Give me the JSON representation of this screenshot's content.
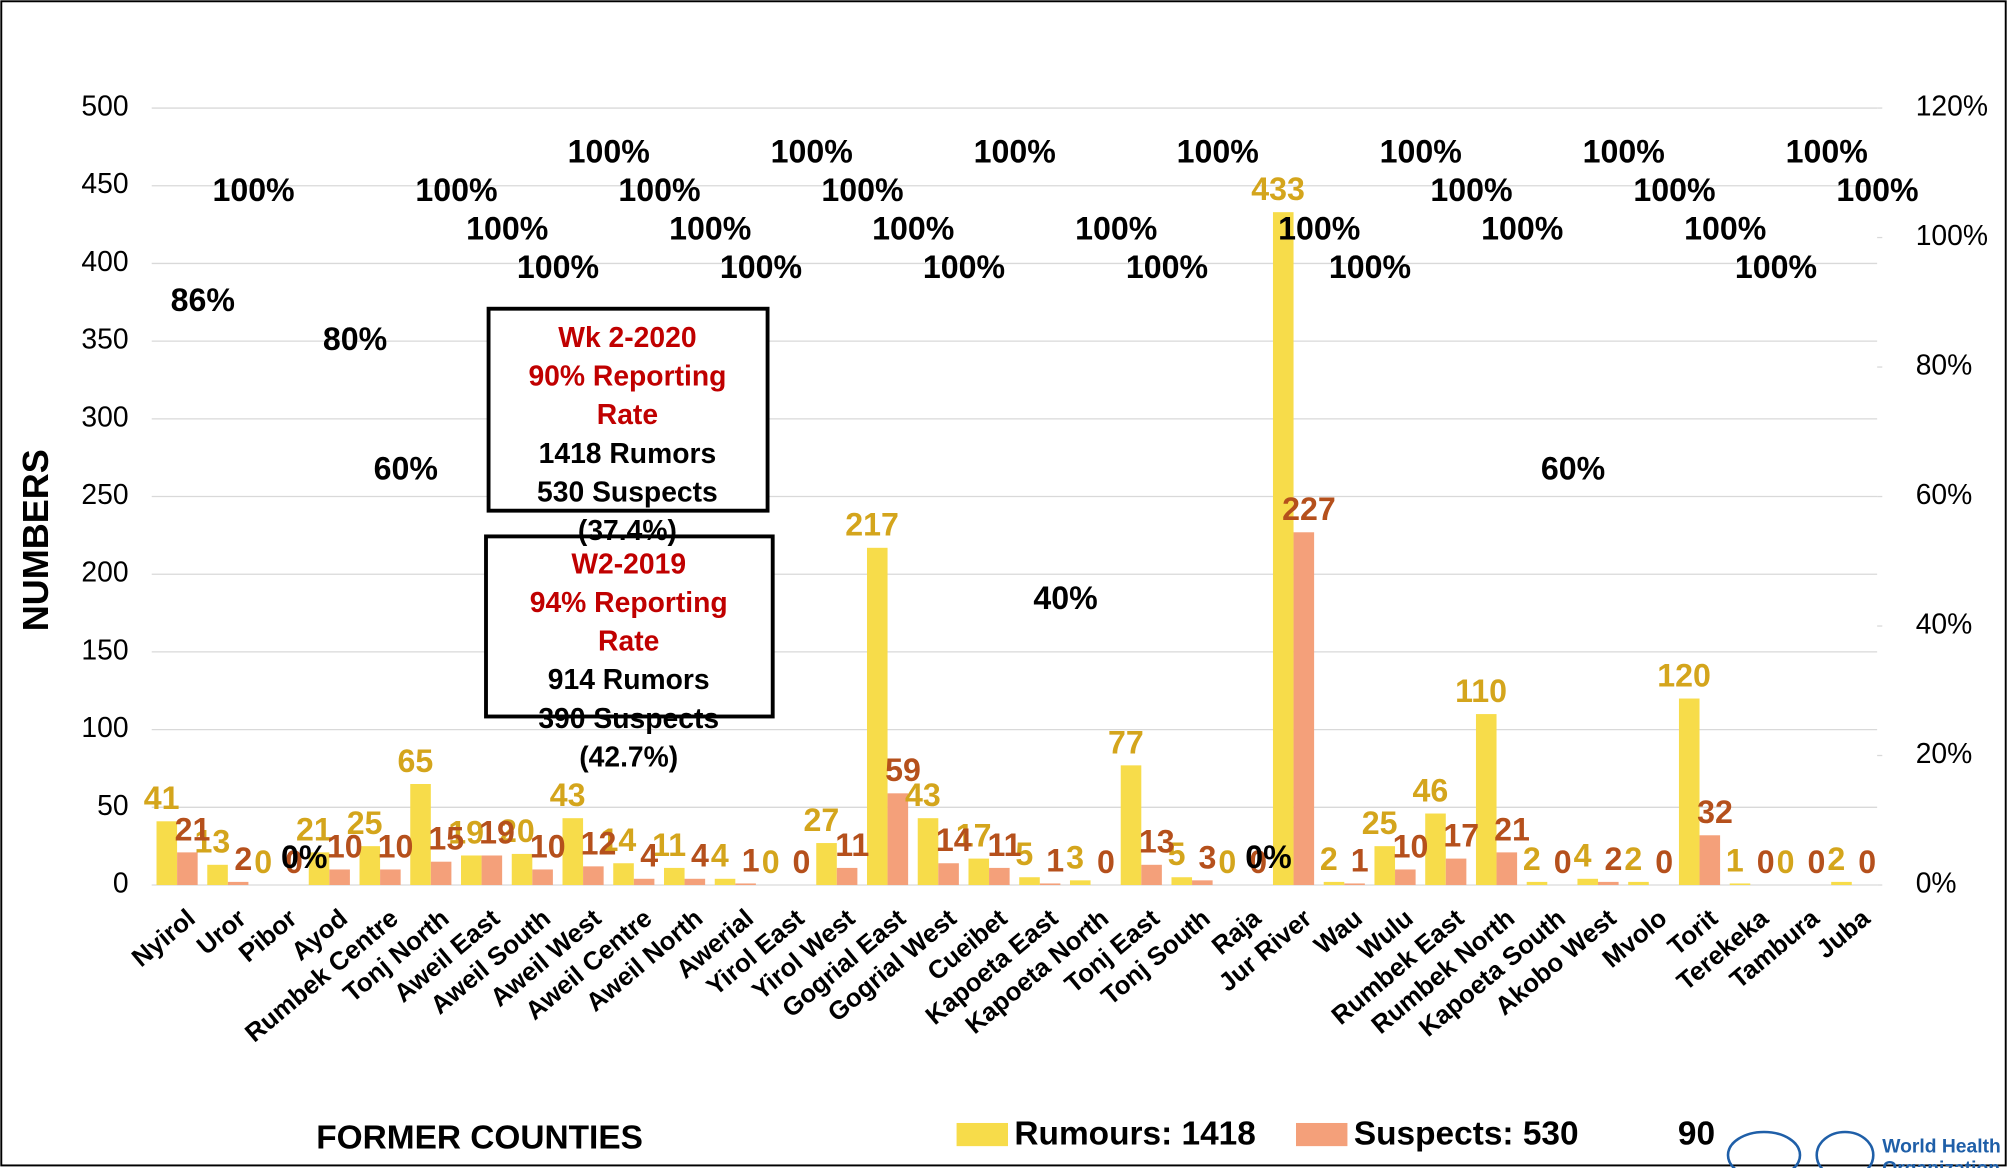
{
  "chart_data": {
    "type": "bar",
    "y_label": "NUMBERS",
    "x_label": "FORMER COUNTIES",
    "categories": [
      "Nyirol",
      "Uror",
      "Pibor",
      "Ayod",
      "Rumbek Centre",
      "Tonj North",
      "Aweil East",
      "Aweil South",
      "Aweil West",
      "Aweil Centre",
      "Aweil North",
      "Awerial",
      "Yirol East",
      "Yirol West",
      "Gogrial East",
      "Gogrial West",
      "Cueibet",
      "Kapoeta East",
      "Kapoeta North",
      "Tonj East",
      "Tonj South",
      "Raja",
      "Jur River",
      "Wau",
      "Wulu",
      "Rumbek East",
      "Rumbek North",
      "Kapoeta South",
      "Akobo West",
      "Mvolo",
      "Torit",
      "Terekeka",
      "Tambura",
      "Juba"
    ],
    "series": [
      {
        "name": "Rumours: 1418",
        "color": "#f7dc4a",
        "label_color": "#d4a51c",
        "values": [
          41,
          13,
          0,
          21,
          25,
          65,
          19,
          20,
          43,
          14,
          11,
          4,
          0,
          27,
          217,
          43,
          17,
          5,
          3,
          77,
          5,
          0,
          433,
          2,
          25,
          46,
          110,
          2,
          4,
          2,
          120,
          1,
          0,
          2
        ]
      },
      {
        "name": "Suspects: 530",
        "color": "#f4a07a",
        "label_color": "#b5501c",
        "values": [
          21,
          2,
          0,
          10,
          10,
          15,
          19,
          10,
          12,
          4,
          4,
          1,
          0,
          11,
          59,
          14,
          11,
          1,
          0,
          13,
          3,
          0,
          227,
          1,
          10,
          17,
          21,
          0,
          2,
          0,
          32,
          0,
          0,
          0
        ]
      },
      {
        "name": "90",
        "axis": "y2",
        "label_color": "#000000",
        "values": [
          86,
          100,
          0,
          80,
          60,
          100,
          100,
          100,
          100,
          100,
          100,
          100,
          100,
          100,
          100,
          100,
          100,
          40,
          100,
          100,
          100,
          0,
          100,
          100,
          100,
          100,
          100,
          60,
          100,
          100,
          100,
          100,
          100,
          100
        ],
        "value_labels": [
          "86%",
          "100%",
          "0%",
          "80%",
          "60%",
          "100%",
          "100%",
          "100%",
          "100%",
          "100%",
          "100%",
          "100%",
          "100%",
          "100%",
          "100%",
          "100%",
          "100%",
          "40%",
          "100%",
          "100%",
          "100%",
          "0%",
          "100%",
          "100%",
          "100%",
          "100%",
          "100%",
          "60%",
          "100%",
          "100%",
          "100%",
          "100%",
          "100%",
          "100%"
        ]
      }
    ],
    "ylim": [
      0,
      500
    ],
    "yticks": [
      0,
      50,
      100,
      150,
      200,
      250,
      300,
      350,
      400,
      450,
      500
    ],
    "y2lim": [
      0,
      120
    ],
    "y2ticks": [
      {
        "value": 0,
        "label": "0%"
      },
      {
        "value": 20,
        "label": "20%"
      },
      {
        "value": 40,
        "label": "40%"
      },
      {
        "value": 60,
        "label": "60%"
      },
      {
        "value": 80,
        "label": "80%"
      },
      {
        "value": 100,
        "label": "100%"
      },
      {
        "value": 120,
        "label": "120%"
      }
    ],
    "grid": true,
    "legend": "bottom",
    "annotations": [
      {
        "lines": [
          "Wk 2-2020",
          "90% Reporting",
          "Rate",
          "1418 Rumors",
          "530 Suspects",
          "(37.4%)"
        ]
      },
      {
        "lines": [
          "W2-2019",
          "94% Reporting",
          "Rate",
          "914 Rumors",
          "390 Suspects",
          "(42.7%)"
        ]
      }
    ],
    "logo": [
      "World Health",
      "Organization"
    ]
  }
}
